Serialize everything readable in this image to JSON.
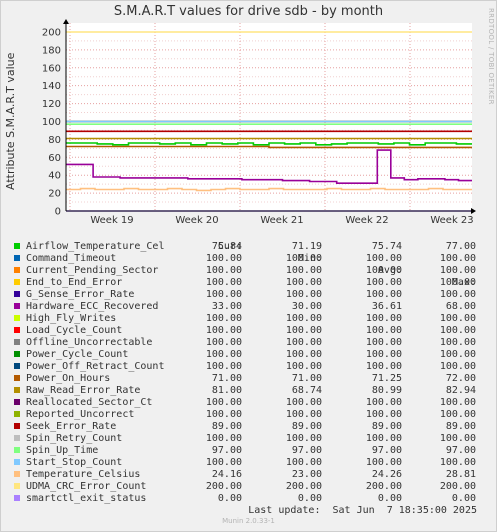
{
  "title": "S.M.A.R.T values for drive sdb - by month",
  "ylabel": "Attribute S.M.A.R.T value",
  "watermark": "RRDTOOL / TOBI OETIKER",
  "legend_headers": {
    "cur": "Cur:",
    "min": "Min:",
    "avg": "Avg:",
    "max": "Max:"
  },
  "last_update": "Last update:  Sat Jun  7 18:35:00 2025",
  "footer": "Munin 2.0.33-1",
  "chart_data": {
    "type": "line",
    "title": "S.M.A.R.T values for drive sdb - by month",
    "ylabel": "Attribute S.M.A.R.T value",
    "xlabel": "",
    "ylim": [
      0,
      210
    ],
    "yticks": [
      0,
      20,
      40,
      60,
      80,
      100,
      120,
      140,
      160,
      180,
      200
    ],
    "xticks": [
      "Week 19",
      "Week 20",
      "Week 21",
      "Week 22",
      "Week 23"
    ],
    "grid": true,
    "series": [
      {
        "name": "Airflow_Temperature_Cel",
        "color": "#00cc00",
        "cur": "75.84",
        "min": "71.19",
        "avg": "75.74",
        "max": "77.00",
        "values": [
          76,
          76,
          75,
          74,
          76,
          76,
          75,
          76,
          74,
          76,
          75,
          76,
          74,
          76,
          75,
          76,
          74,
          75,
          76,
          76,
          75,
          76,
          74,
          76,
          76,
          75
        ]
      },
      {
        "name": "Command_Timeout",
        "color": "#0066b3",
        "cur": "100.00",
        "min": "100.00",
        "avg": "100.00",
        "max": "100.00",
        "values": [
          100,
          100
        ]
      },
      {
        "name": "Current_Pending_Sector",
        "color": "#ff8000",
        "cur": "100.00",
        "min": "100.00",
        "avg": "100.00",
        "max": "100.00",
        "values": [
          100,
          100
        ]
      },
      {
        "name": "End_to_End_Error",
        "color": "#ffcc00",
        "cur": "100.00",
        "min": "100.00",
        "avg": "100.00",
        "max": "100.00",
        "values": [
          100,
          100
        ]
      },
      {
        "name": "G_Sense_Error_Rate",
        "color": "#330099",
        "cur": "100.00",
        "min": "100.00",
        "avg": "100.00",
        "max": "100.00",
        "values": [
          100,
          100
        ]
      },
      {
        "name": "Hardware_ECC_Recovered",
        "color": "#990099",
        "cur": "33.00",
        "min": "30.00",
        "avg": "36.61",
        "max": "68.00",
        "values": [
          52,
          52,
          38,
          38,
          37,
          37,
          37,
          37,
          37,
          36,
          36,
          36,
          36,
          35,
          35,
          35,
          34,
          34,
          33,
          33,
          31,
          31,
          31,
          68,
          37,
          35,
          36,
          36,
          35,
          34
        ]
      },
      {
        "name": "High_Fly_Writes",
        "color": "#ccff00",
        "cur": "100.00",
        "min": "100.00",
        "avg": "100.00",
        "max": "100.00",
        "values": [
          100,
          100
        ]
      },
      {
        "name": "Load_Cycle_Count",
        "color": "#ff0000",
        "cur": "100.00",
        "min": "100.00",
        "avg": "100.00",
        "max": "100.00",
        "values": [
          100,
          100
        ]
      },
      {
        "name": "Offline_Uncorrectable",
        "color": "#808080",
        "cur": "100.00",
        "min": "100.00",
        "avg": "100.00",
        "max": "100.00",
        "values": [
          100,
          100
        ]
      },
      {
        "name": "Power_Cycle_Count",
        "color": "#008f00",
        "cur": "100.00",
        "min": "100.00",
        "avg": "100.00",
        "max": "100.00",
        "values": [
          100,
          100
        ]
      },
      {
        "name": "Power_Off_Retract_Count",
        "color": "#00487d",
        "cur": "100.00",
        "min": "100.00",
        "avg": "100.00",
        "max": "100.00",
        "values": [
          100,
          100
        ]
      },
      {
        "name": "Power_On_Hours",
        "color": "#b35a00",
        "cur": "71.00",
        "min": "71.00",
        "avg": "71.25",
        "max": "72.00",
        "values": [
          72,
          72,
          71,
          71
        ]
      },
      {
        "name": "Raw_Read_Error_Rate",
        "color": "#b38f00",
        "cur": "81.00",
        "min": "68.74",
        "avg": "80.99",
        "max": "82.94",
        "values": [
          81,
          81
        ]
      },
      {
        "name": "Reallocated_Sector_Ct",
        "color": "#6b006b",
        "cur": "100.00",
        "min": "100.00",
        "avg": "100.00",
        "max": "100.00",
        "values": [
          100,
          100
        ]
      },
      {
        "name": "Reported_Uncorrect",
        "color": "#8fb300",
        "cur": "100.00",
        "min": "100.00",
        "avg": "100.00",
        "max": "100.00",
        "values": [
          100,
          100
        ]
      },
      {
        "name": "Seek_Error_Rate",
        "color": "#b30000",
        "cur": "89.00",
        "min": "89.00",
        "avg": "89.00",
        "max": "89.00",
        "values": [
          89,
          89
        ]
      },
      {
        "name": "Spin_Retry_Count",
        "color": "#bebebe",
        "cur": "100.00",
        "min": "100.00",
        "avg": "100.00",
        "max": "100.00",
        "values": [
          100,
          100
        ]
      },
      {
        "name": "Spin_Up_Time",
        "color": "#80ff80",
        "cur": "97.00",
        "min": "97.00",
        "avg": "97.00",
        "max": "97.00",
        "values": [
          97,
          97
        ]
      },
      {
        "name": "Start_Stop_Count",
        "color": "#80c9ff",
        "cur": "100.00",
        "min": "100.00",
        "avg": "100.00",
        "max": "100.00",
        "values": [
          100,
          100
        ]
      },
      {
        "name": "Temperature_Celsius",
        "color": "#ffc080",
        "cur": "24.16",
        "min": "23.00",
        "avg": "24.26",
        "max": "28.81",
        "values": [
          24,
          25,
          24,
          24,
          25,
          24,
          24,
          25,
          24,
          23,
          24,
          25,
          24,
          24,
          25,
          24,
          24,
          24,
          25,
          24,
          24,
          25,
          24,
          24,
          24,
          25,
          24,
          24
        ]
      },
      {
        "name": "UDMA_CRC_Error_Count",
        "color": "#ffe680",
        "cur": "200.00",
        "min": "200.00",
        "avg": "200.00",
        "max": "200.00",
        "values": [
          200,
          200
        ]
      },
      {
        "name": "smartctl_exit_status",
        "color": "#aa80ff",
        "cur": "0.00",
        "min": "0.00",
        "avg": "0.00",
        "max": "0.00",
        "values": [
          0,
          0
        ]
      }
    ]
  }
}
